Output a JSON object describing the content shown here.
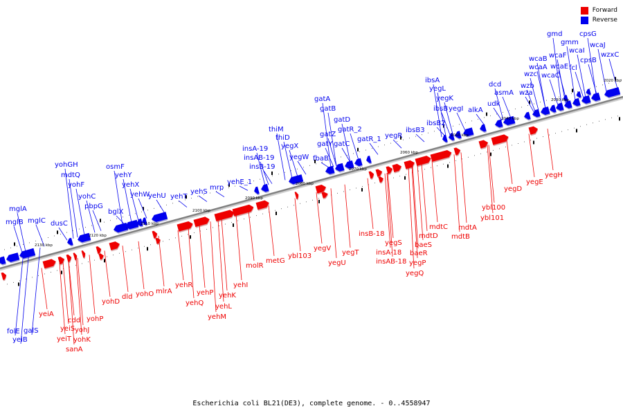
{
  "legend": {
    "forward_label": "Forward",
    "forward_color": "#ee0000",
    "reverse_label": "Reverse",
    "reverse_color": "#0000ee"
  },
  "caption": "Escherichia coli BL21(DE3), complete genome. - 0..4558947",
  "axis_color": "#808080",
  "kbp_ticks": [
    "2020 kbp",
    "2030 kbp",
    "2040 kbp",
    "2050 kbp",
    "2060 kbp",
    "2070 kbp",
    "2080 kbp",
    "2090 kbp",
    "2100 kbp",
    "2110 kbp",
    "2120 kbp",
    "2130 kbp"
  ],
  "reverse_genes": [
    "wzxC",
    "wcaJ",
    "cpsB",
    "cpsG",
    "wcaI",
    "fcl",
    "gmm",
    "gmd",
    "wcaF",
    "wcaE",
    "wcaC",
    "wcaB",
    "wcaA",
    "wzc",
    "wzb",
    "wza",
    "asmA",
    "dcd",
    "udk",
    "alkA",
    "yegI",
    "yegK",
    "yegL",
    "ibsA",
    "ibsB",
    "ibsB2",
    "ibsB3",
    "yegR",
    "gatR_1",
    "gatR_2",
    "gatD",
    "gatC",
    "gatA",
    "gatB",
    "gatZ",
    "gatY",
    "fbaB",
    "yegW",
    "yegX",
    "thiD",
    "thiM",
    "insB-19",
    "insAB-19",
    "insA-19",
    "yehE_1",
    "mrp",
    "yehS",
    "yehT",
    "yehU",
    "yehW",
    "yehX",
    "yehY",
    "osmF",
    "bglX",
    "pbpG",
    "yohC",
    "yohF",
    "mdtQ",
    "yohGH",
    "dusC",
    "mglC",
    "mglA",
    "mglB",
    "galS",
    "folE",
    "yeiB"
  ],
  "forward_genes": [
    "yegH",
    "yegE",
    "yegD",
    "ybl100",
    "ybl101",
    "mdtA",
    "mdtB",
    "mdtC",
    "mdtD",
    "baeS",
    "baeR",
    "yegP",
    "yegQ",
    "yegS",
    "insA-18",
    "insAB-18",
    "insB-18",
    "yegT",
    "yegU",
    "yegV",
    "ybl103",
    "metG",
    "molR",
    "yehI",
    "yehK",
    "yehL",
    "yehM",
    "yehP",
    "yehQ",
    "yehR",
    "mlrA",
    "yohO",
    "dld",
    "yohD",
    "yohP",
    "yohK",
    "yohJ",
    "sanA",
    "cdd",
    "yeiS",
    "yeiT",
    "yeiA"
  ]
}
